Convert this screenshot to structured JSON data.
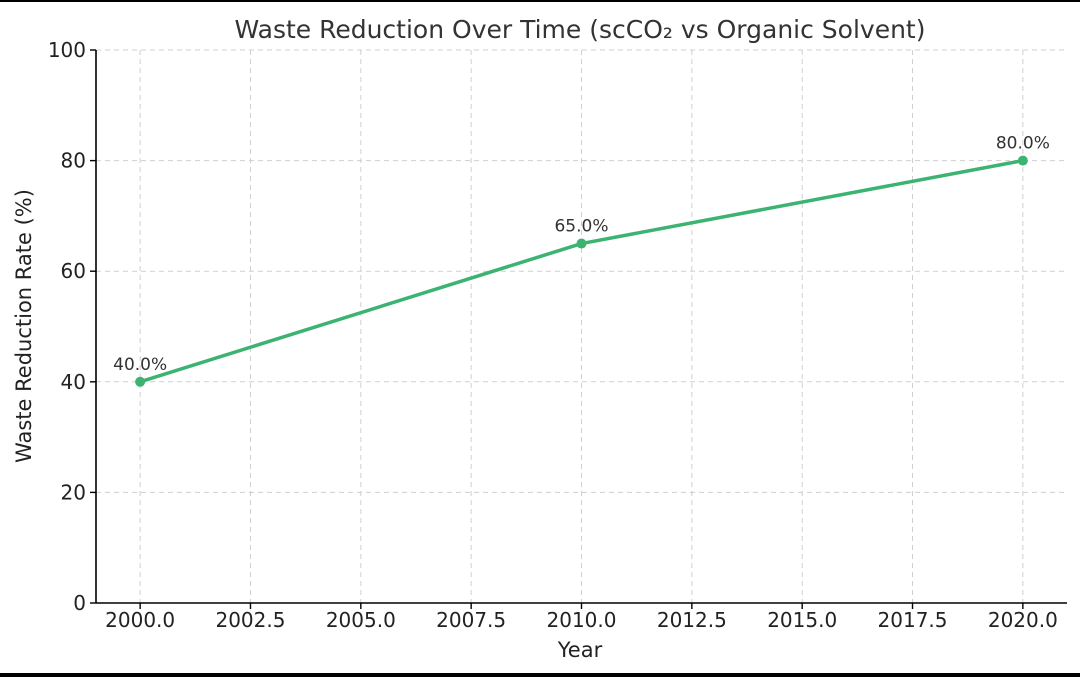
{
  "chart_data": {
    "type": "line",
    "title": "Waste Reduction Over Time (scCO₂ vs Organic Solvent)",
    "xlabel": "Year",
    "ylabel": "Waste Reduction Rate (%)",
    "xlim": [
      1999.0,
      2021.0
    ],
    "ylim": [
      0,
      100
    ],
    "x_ticks": [
      "2000.0",
      "2002.5",
      "2005.0",
      "2007.5",
      "2010.0",
      "2012.5",
      "2015.0",
      "2017.5",
      "2020.0"
    ],
    "x_tick_values": [
      2000.0,
      2002.5,
      2005.0,
      2007.5,
      2010.0,
      2012.5,
      2015.0,
      2017.5,
      2020.0
    ],
    "y_ticks": [
      "0",
      "20",
      "40",
      "60",
      "80",
      "100"
    ],
    "y_tick_values": [
      0,
      20,
      40,
      60,
      80,
      100
    ],
    "grid": true,
    "series": [
      {
        "color": "#3cb371",
        "x": [
          2000,
          2010,
          2020
        ],
        "values": [
          40.0,
          65.0,
          80.0
        ],
        "data_labels": [
          "40.0%",
          "65.0%",
          "80.0%"
        ]
      }
    ]
  }
}
